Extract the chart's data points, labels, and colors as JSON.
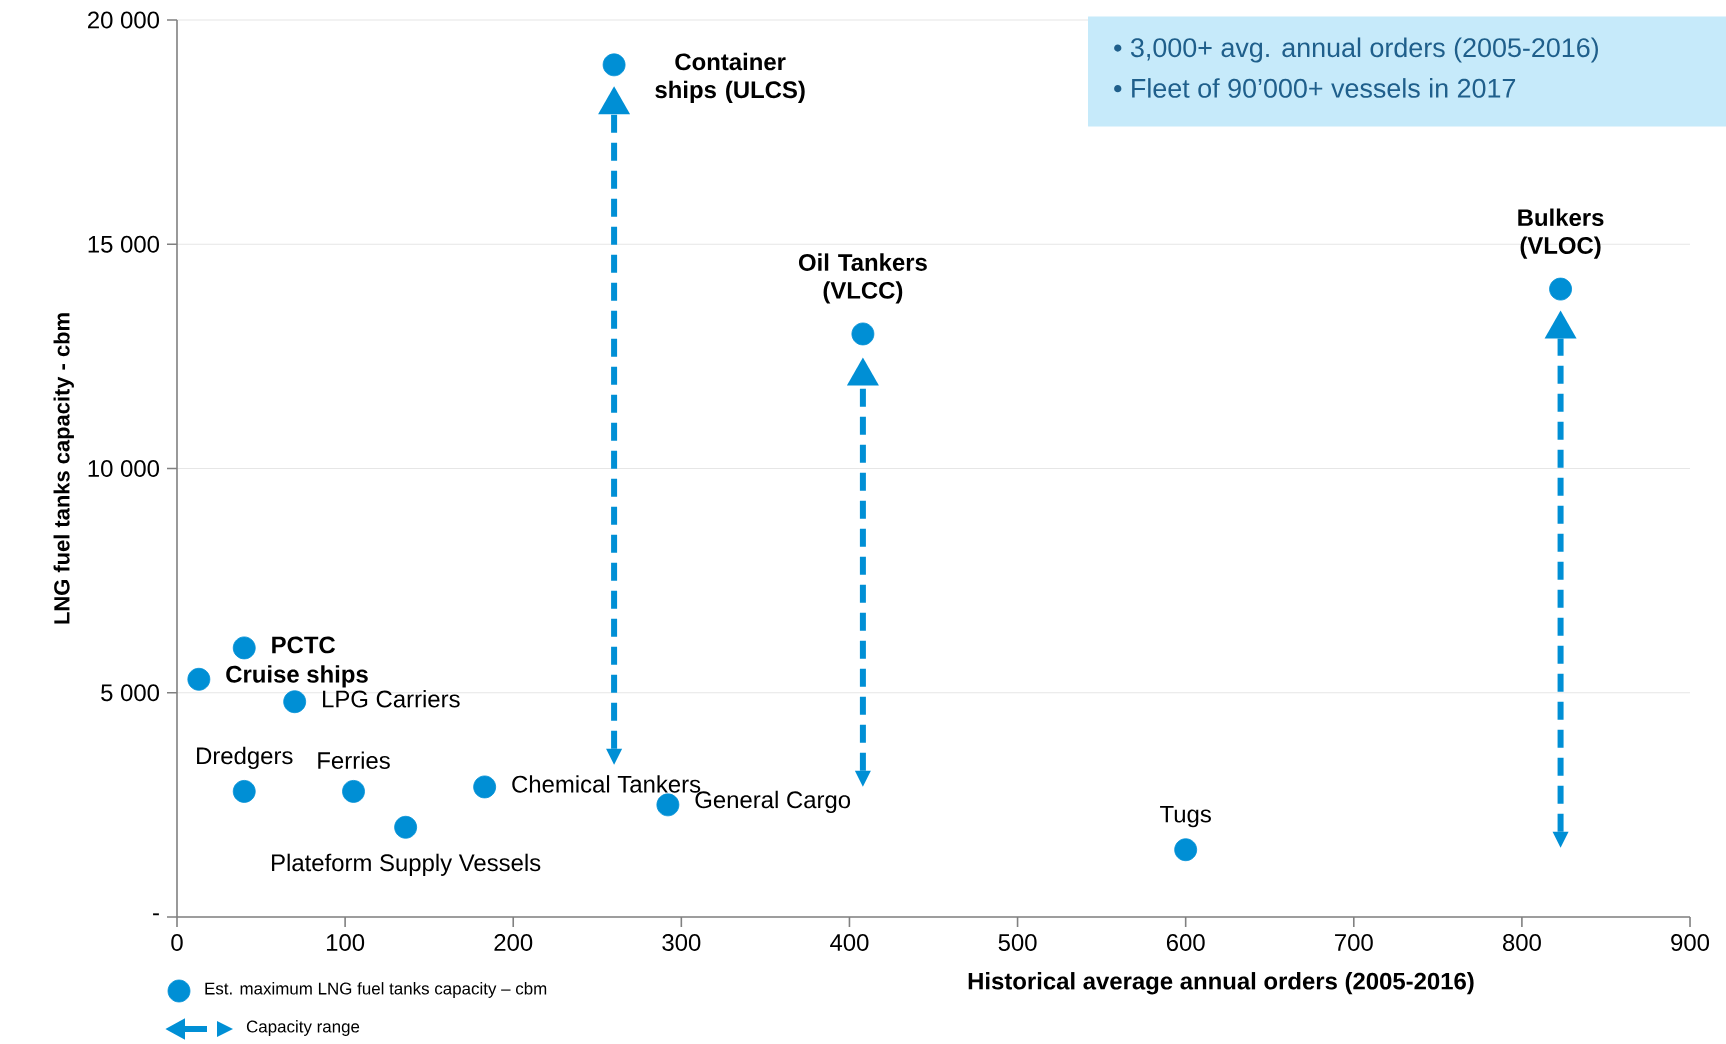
{
  "chart_data": {
    "type": "scatter",
    "xlabel": "Historical average annual orders (2005-2016)",
    "ylabel": "LNG fuel tanks capacity - cbm",
    "xlim": [
      0,
      900
    ],
    "xticks": [
      0,
      100,
      200,
      300,
      400,
      500,
      600,
      700,
      800,
      900
    ],
    "ylim": [
      0,
      20000
    ],
    "yticks": [
      {
        "value": 0,
        "label": "-"
      },
      {
        "value": 5000,
        "label": "5 000"
      },
      {
        "value": 10000,
        "label": "10 000"
      },
      {
        "value": 15000,
        "label": "15 000"
      },
      {
        "value": 20000,
        "label": "20 000"
      }
    ],
    "grid": "y",
    "legend": "bottom left",
    "marker": "circle",
    "series": [
      {
        "name": "Est. maximum LNG fuel tanks capacity – cbm",
        "color": "#008fd5",
        "x": [
          13,
          40,
          70,
          40,
          105,
          136,
          183,
          292,
          260,
          408,
          600,
          823
        ],
        "values": [
          5300,
          6000,
          4800,
          2800,
          2800,
          2000,
          2900,
          2500,
          19000,
          13000,
          1500,
          14000
        ],
        "errors": [
          null,
          null,
          null,
          null,
          null,
          null,
          null,
          null,
          [
            3750,
            17900
          ],
          [
            3260,
            11850
          ],
          null,
          [
            1900,
            12900
          ]
        ]
      }
    ],
    "annotations": [
      {
        "text": "**Cruise ships**",
        "x": 13,
        "y": 5300
      },
      {
        "text": "**PCTC**",
        "x": 40,
        "y": 6000
      },
      {
        "text": "LPG Carriers",
        "x": 70,
        "y": 4800
      },
      {
        "text": "Dredgers",
        "x": 40,
        "y": 2800
      },
      {
        "text": "Ferries",
        "x": 105,
        "y": 2800
      },
      {
        "text": "Plateform Supply Vessels",
        "x": 136,
        "y": 2000
      },
      {
        "text": "Chemical Tankers",
        "x": 183,
        "y": 2900
      },
      {
        "text": "General Cargo",
        "x": 292,
        "y": 2500
      },
      {
        "text": "**Container ships (ULCS)**",
        "x": 260,
        "y": 19000
      },
      {
        "text": "**Oil Tankers (VLCC)**",
        "x": 408,
        "y": 13000
      },
      {
        "text": "Tugs",
        "x": 600,
        "y": 1500
      },
      {
        "text": "**Bulkers (VLOC)**",
        "x": 823,
        "y": 14000
      },
      {
        "text": "Capacity range"
      },
      "• 3,000+ avg. annual orders (2005-2016)",
      "• Fleet of 90’000+ vessels in 2017"
    ]
  }
}
